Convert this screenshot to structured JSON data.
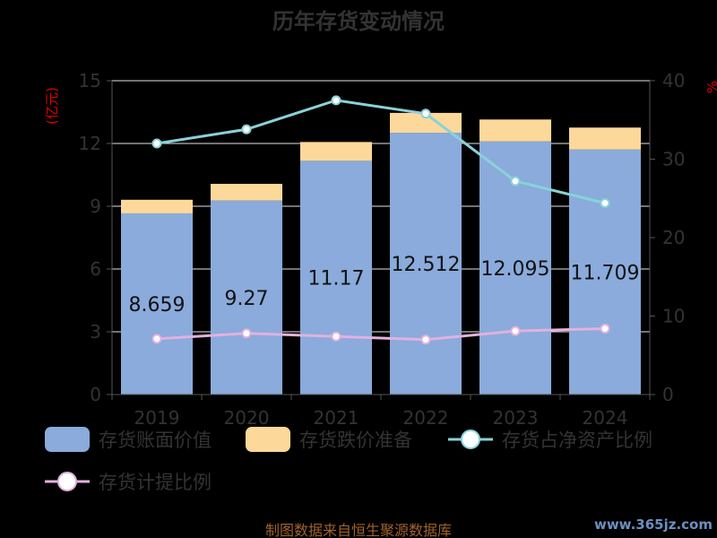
{
  "chart_data": {
    "title": "历年存货变动情况",
    "type": "bar+line",
    "categories": [
      "2019",
      "2020",
      "2021",
      "2022",
      "2023",
      "2024"
    ],
    "left_axis": {
      "unit": "(亿元)",
      "ylim": [
        0,
        15
      ],
      "ticks": [
        "0",
        "3",
        "6",
        "9",
        "12",
        "15"
      ]
    },
    "right_axis": {
      "unit": "%",
      "ylim": [
        0,
        40
      ],
      "ticks": [
        "0",
        "10",
        "20",
        "30",
        "40"
      ]
    },
    "series": [
      {
        "name": "存货账面价值",
        "kind": "bar",
        "stack": "inv",
        "color": "#8aabdb",
        "values": [
          8.659,
          9.27,
          11.17,
          12.512,
          12.095,
          11.709
        ],
        "labels": [
          "8.659",
          "9.27",
          "11.17",
          "12.512",
          "12.095",
          "11.709"
        ]
      },
      {
        "name": "存货跌价准备",
        "kind": "bar",
        "stack": "inv",
        "color": "#fdd89b",
        "values": [
          0.65,
          0.8,
          0.9,
          0.95,
          1.05,
          1.05
        ]
      },
      {
        "name": "存货占净资产比例",
        "kind": "line",
        "axis": "right",
        "color": "#89d2d8",
        "values": [
          32.0,
          33.8,
          37.5,
          35.8,
          27.2,
          24.4
        ]
      },
      {
        "name": "存货计提比例",
        "kind": "line",
        "axis": "right",
        "color": "#e2b1de",
        "values": [
          7.1,
          7.8,
          7.4,
          7.0,
          8.1,
          8.4
        ]
      }
    ],
    "grid": true,
    "legend_position": "bottom"
  },
  "footer": {
    "source": "制图数据来自恒生聚源数据库",
    "watermark": "www.365jz.com"
  }
}
